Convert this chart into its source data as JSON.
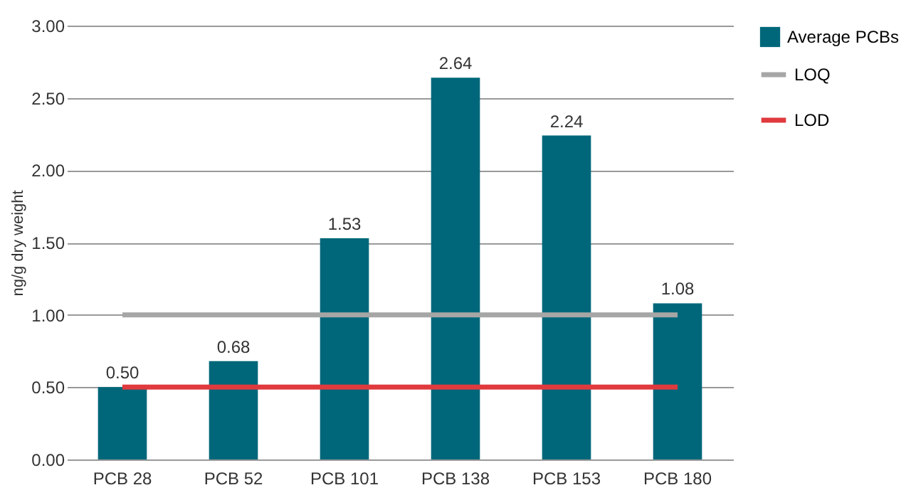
{
  "chart_data": {
    "type": "bar",
    "ylabel": "ng/g dry weight",
    "categories": [
      "PCB 28",
      "PCB 52",
      "PCB 101",
      "PCB 138",
      "PCB 153",
      "PCB 180"
    ],
    "series": [
      {
        "name": "Average PCBs",
        "color": "#00677a",
        "values": [
          0.5,
          0.68,
          1.53,
          2.64,
          2.24,
          1.08
        ],
        "value_labels": [
          "0.50",
          "0.68",
          "1.53",
          "2.64",
          "2.24",
          "1.08"
        ]
      },
      {
        "name": "LOQ",
        "type": "line",
        "color": "#a6a6a6",
        "values": [
          1.0,
          1.0,
          1.0,
          1.0,
          1.0,
          1.0
        ]
      },
      {
        "name": "LOD",
        "type": "line",
        "color": "#e03a3e",
        "values": [
          0.5,
          0.5,
          0.5,
          0.5,
          0.5,
          0.5
        ]
      }
    ],
    "ylim": [
      0,
      3
    ],
    "yticks": [
      {
        "value": 0,
        "label": "0.00"
      },
      {
        "value": 0.5,
        "label": "0.50"
      },
      {
        "value": 1,
        "label": "1.00"
      },
      {
        "value": 1.5,
        "label": "1.50"
      },
      {
        "value": 2,
        "label": "2.00"
      },
      {
        "value": 2.5,
        "label": "2.50"
      },
      {
        "value": 3,
        "label": "3.00"
      }
    ],
    "grid": "y",
    "legend": "right",
    "marker": "none"
  }
}
